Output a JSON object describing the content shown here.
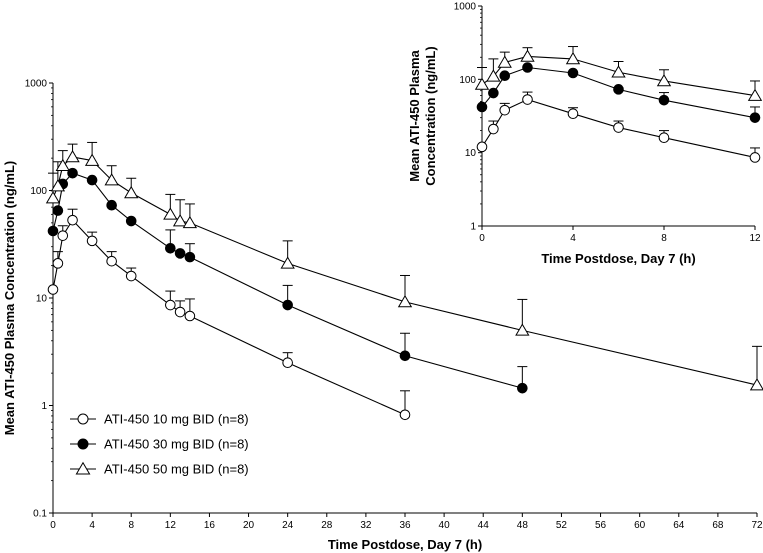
{
  "chart_data": [
    {
      "type": "line",
      "name": "main",
      "xlabel": "Time Postdose, Day 7 (h)",
      "ylabel": "Mean ATI-450 Plasma Concentration (ng/mL)",
      "yscale": "log",
      "ylim": [
        0.1,
        1000
      ],
      "xlim": [
        0,
        72
      ],
      "xticks": [
        "0",
        "4",
        "8",
        "12",
        "16",
        "20",
        "24",
        "28",
        "32",
        "36",
        "40",
        "44",
        "48",
        "52",
        "56",
        "60",
        "64",
        "68",
        "72"
      ],
      "yticks": [
        "0.1",
        "1",
        "10",
        "100",
        "1000"
      ],
      "legend_position": "bottom-left",
      "series": [
        {
          "name": "ATI-450 10 mg BID (n=8)",
          "marker": "open-circle",
          "x": [
            0,
            0.5,
            1,
            2,
            4,
            6,
            8,
            12,
            13,
            14,
            24,
            36
          ],
          "y": [
            12,
            21,
            38,
            53,
            34,
            22,
            16,
            8.6,
            7.4,
            6.8,
            2.5,
            0.82
          ],
          "err": [
            null,
            6,
            9,
            14,
            7,
            5,
            3,
            3,
            2,
            3,
            0.6,
            0.55
          ]
        },
        {
          "name": "ATI-450 30 mg BID (n=8)",
          "marker": "filled-circle",
          "x": [
            0,
            0.5,
            1,
            2,
            4,
            6,
            8,
            12,
            13,
            14,
            24,
            36,
            48
          ],
          "y": [
            42,
            65,
            115,
            145,
            125,
            73,
            52,
            29,
            26,
            24,
            8.6,
            2.9,
            1.45
          ],
          "err": [
            null,
            null,
            null,
            null,
            null,
            null,
            null,
            14,
            null,
            8,
            4.5,
            1.8,
            0.85
          ]
        },
        {
          "name": "ATI-450 50 mg BID (n=8)",
          "marker": "open-triangle",
          "x": [
            0,
            0.5,
            1,
            2,
            4,
            6,
            8,
            12,
            13,
            14,
            24,
            36,
            48,
            72
          ],
          "y": [
            85,
            110,
            170,
            205,
            190,
            125,
            95,
            60,
            52,
            50,
            21,
            9.2,
            5.0,
            1.55
          ],
          "err": [
            60,
            75,
            65,
            65,
            90,
            45,
            35,
            32,
            30,
            25,
            13,
            7,
            4.7,
            2.0
          ]
        }
      ]
    },
    {
      "type": "line",
      "name": "inset",
      "xlabel": "Time Postdose, Day 7 (h)",
      "ylabel_lines": [
        "Mean ATI-450 Plasma",
        "Concentration (ng/mL)"
      ],
      "yscale": "log",
      "ylim": [
        1,
        1000
      ],
      "xlim": [
        0,
        12
      ],
      "xticks": [
        "0",
        "4",
        "8",
        "12"
      ],
      "yticks": [
        "1",
        "10",
        "100",
        "1000"
      ],
      "series": [
        {
          "name": "ATI-450 10 mg BID (n=8)",
          "marker": "open-circle",
          "x": [
            0,
            0.5,
            1,
            2,
            4,
            6,
            8,
            12
          ],
          "y": [
            12,
            21,
            38,
            53,
            34,
            22,
            16,
            8.6
          ],
          "err": [
            null,
            6,
            9,
            14,
            7,
            5,
            4,
            3
          ]
        },
        {
          "name": "ATI-450 30 mg BID (n=8)",
          "marker": "filled-circle",
          "x": [
            0,
            0.5,
            1,
            2,
            4,
            6,
            8,
            12
          ],
          "y": [
            42,
            65,
            112,
            145,
            122,
            73,
            52,
            30
          ],
          "err": [
            null,
            null,
            null,
            null,
            null,
            null,
            14,
            12
          ]
        },
        {
          "name": "ATI-450 50 mg BID (n=8)",
          "marker": "open-triangle",
          "x": [
            0,
            0.5,
            1,
            2,
            4,
            6,
            8,
            12
          ],
          "y": [
            85,
            110,
            170,
            205,
            190,
            125,
            95,
            60
          ],
          "err": [
            60,
            80,
            65,
            65,
            90,
            50,
            40,
            35
          ]
        }
      ]
    }
  ]
}
